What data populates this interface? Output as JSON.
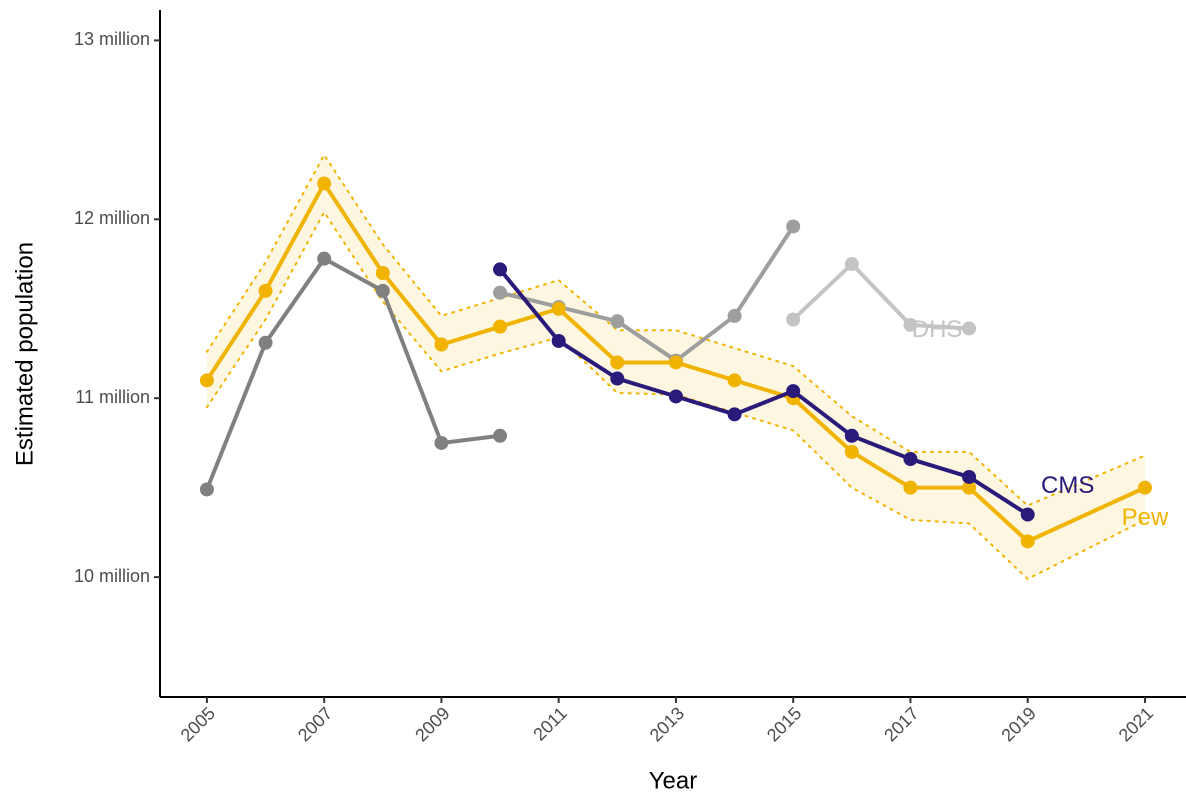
{
  "chart_data": {
    "type": "line",
    "xlabel": "Year",
    "ylabel": "Estimated population",
    "xlim": [
      2004.2,
      2021.7
    ],
    "xticks": [
      2005,
      2007,
      2009,
      2011,
      2013,
      2015,
      2017,
      2019,
      2021
    ],
    "ylim": [
      9.33,
      13.17
    ],
    "yticks": [
      {
        "value": 10,
        "label": "10 million"
      },
      {
        "value": 11,
        "label": "11 million"
      },
      {
        "value": 12,
        "label": "12 million"
      },
      {
        "value": 13,
        "label": "13 million"
      }
    ],
    "band": {
      "color": "#f0b400",
      "x": [
        2005,
        2006,
        2007,
        2008,
        2009,
        2010,
        2011,
        2012,
        2013,
        2014,
        2015,
        2016,
        2017,
        2018,
        2019,
        2021
      ],
      "upper": [
        11.26,
        11.76,
        12.36,
        11.86,
        11.46,
        11.56,
        11.66,
        11.38,
        11.38,
        11.28,
        11.18,
        10.9,
        10.7,
        10.7,
        10.4,
        10.68
      ],
      "lower": [
        10.95,
        11.44,
        12.04,
        11.54,
        11.15,
        11.25,
        11.34,
        11.03,
        11.02,
        10.92,
        10.82,
        10.5,
        10.32,
        10.3,
        9.99,
        10.32
      ]
    },
    "series": [
      {
        "color": "#808080",
        "x": [
          2005,
          2006,
          2007,
          2008,
          2009,
          2010
        ],
        "values": [
          10.49,
          11.31,
          11.78,
          11.6,
          10.75,
          10.79
        ]
      },
      {
        "color": "#9e9e9e",
        "x": [
          2010,
          2011,
          2012,
          2013,
          2014,
          2015
        ],
        "values": [
          11.59,
          11.51,
          11.43,
          11.21,
          11.46,
          11.96
        ]
      },
      {
        "name": "DHS",
        "color": "#c4c4c4",
        "x": [
          2015,
          2016,
          2017,
          2018
        ],
        "values": [
          11.44,
          11.75,
          11.41,
          11.39
        ]
      },
      {
        "name": "Pew",
        "color": "#f0b400",
        "x": [
          2005,
          2006,
          2007,
          2008,
          2009,
          2010,
          2011,
          2012,
          2013,
          2014,
          2015,
          2016,
          2017,
          2018,
          2019,
          2021
        ],
        "values": [
          11.1,
          11.6,
          12.2,
          11.7,
          11.3,
          11.4,
          11.5,
          11.2,
          11.2,
          11.1,
          11.0,
          10.7,
          10.5,
          10.5,
          10.2,
          10.5
        ]
      },
      {
        "name": "CMS",
        "color": "#2a1a7a",
        "x": [
          2010,
          2011,
          2012,
          2013,
          2014,
          2015,
          2016,
          2017,
          2018,
          2019
        ],
        "values": [
          11.72,
          11.32,
          11.11,
          11.01,
          10.91,
          11.04,
          10.79,
          10.66,
          10.56,
          10.35
        ]
      }
    ]
  }
}
